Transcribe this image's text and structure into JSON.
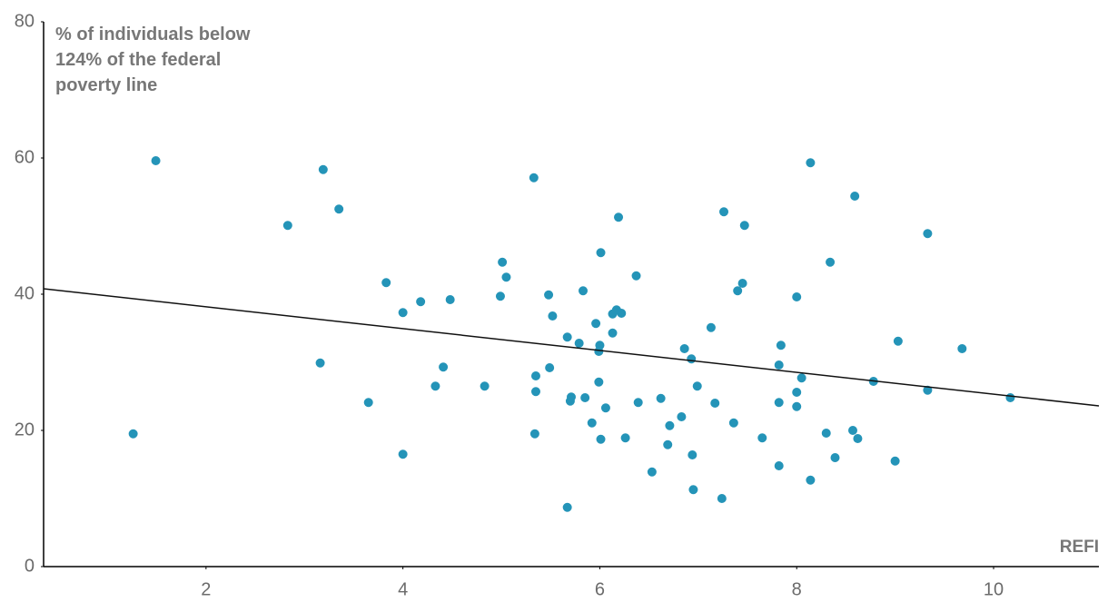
{
  "chart_data": {
    "type": "scatter",
    "y_label": "% of individuals below 124% of the federal poverty line",
    "x_label": "REFI",
    "color": "#2494b8",
    "xlim": [
      0.35,
      11.07
    ],
    "xticks": [
      2,
      4,
      6,
      8,
      10
    ],
    "ylim": [
      0,
      80
    ],
    "yticks": [
      0,
      20,
      40,
      60,
      80
    ],
    "grid": false,
    "trend_line": {
      "x": [
        0.35,
        11.07
      ],
      "y": [
        40.8,
        23.6
      ]
    },
    "x": [
      1.49,
      1.26,
      2.83,
      3.19,
      3.35,
      3.16,
      3.65,
      3.83,
      4.0,
      4.0,
      4.18,
      4.41,
      4.33,
      4.48,
      4.83,
      4.99,
      5.01,
      5.05,
      5.33,
      5.35,
      5.35,
      5.34,
      5.48,
      5.52,
      5.49,
      5.67,
      5.71,
      5.7,
      5.67,
      5.79,
      5.83,
      5.85,
      5.92,
      5.96,
      6.0,
      5.99,
      5.99,
      6.01,
      6.01,
      6.06,
      6.13,
      6.17,
      6.22,
      6.13,
      6.19,
      6.26,
      6.37,
      6.39,
      6.53,
      6.62,
      6.71,
      6.69,
      6.83,
      6.86,
      6.93,
      6.99,
      6.94,
      6.95,
      7.13,
      7.17,
      7.24,
      7.26,
      7.36,
      7.4,
      7.45,
      7.47,
      7.65,
      7.82,
      7.84,
      7.82,
      7.82,
      8.0,
      8.0,
      8.0,
      8.05,
      8.14,
      8.14,
      8.3,
      8.34,
      8.39,
      8.57,
      8.59,
      8.62,
      8.78,
      9.0,
      9.03,
      9.33,
      9.33,
      9.68,
      10.17
    ],
    "y": [
      59.6,
      19.5,
      50.1,
      58.3,
      52.5,
      29.9,
      24.1,
      41.7,
      37.3,
      16.5,
      38.9,
      29.3,
      26.5,
      39.2,
      26.5,
      39.7,
      44.7,
      42.5,
      57.1,
      28.0,
      25.7,
      19.5,
      39.9,
      36.8,
      29.2,
      33.7,
      24.9,
      24.3,
      8.7,
      32.8,
      40.5,
      24.8,
      21.1,
      35.7,
      32.5,
      31.6,
      27.1,
      46.1,
      18.7,
      23.3,
      37.1,
      37.7,
      37.2,
      34.3,
      51.3,
      18.9,
      42.7,
      24.1,
      13.9,
      24.7,
      20.7,
      17.9,
      22.0,
      32.0,
      30.5,
      26.5,
      16.4,
      11.3,
      35.1,
      24.0,
      10.0,
      52.1,
      21.1,
      40.5,
      41.6,
      50.1,
      18.9,
      29.6,
      32.5,
      24.1,
      14.8,
      25.6,
      23.5,
      39.6,
      27.7,
      59.3,
      12.7,
      19.6,
      44.7,
      16.0,
      20.0,
      54.4,
      18.8,
      27.2,
      15.5,
      33.1,
      48.9,
      25.9,
      32.0,
      24.8
    ]
  }
}
